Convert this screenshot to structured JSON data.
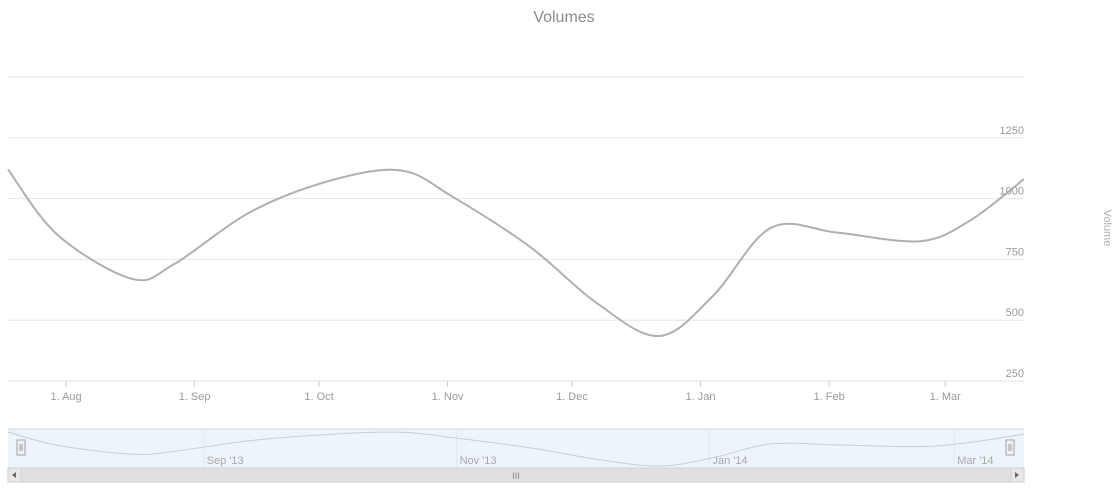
{
  "chart_data": {
    "type": "line",
    "title": "Volumes",
    "ylabel": "Volume",
    "xlabel": "",
    "ylim": [
      250,
      1500
    ],
    "xlim": [
      "2013-07-18",
      "2014-03-20"
    ],
    "y_ticks": [
      "250",
      "500",
      "750",
      "1000",
      "1250"
    ],
    "x_ticks": [
      {
        "date": "2013-08-01",
        "label": "1. Aug"
      },
      {
        "date": "2013-09-01",
        "label": "1. Sep"
      },
      {
        "date": "2013-10-01",
        "label": "1. Oct"
      },
      {
        "date": "2013-11-01",
        "label": "1. Nov"
      },
      {
        "date": "2013-12-01",
        "label": "1. Dec"
      },
      {
        "date": "2014-01-01",
        "label": "1. Jan"
      },
      {
        "date": "2014-02-01",
        "label": "1. Feb"
      },
      {
        "date": "2014-03-01",
        "label": "1. Mar"
      }
    ],
    "series": [
      {
        "color": "#b0b0b0",
        "points": [
          {
            "x": "2013-07-18",
            "y": 1120
          },
          {
            "x": "2013-07-30",
            "y": 850
          },
          {
            "x": "2013-08-17",
            "y": 670
          },
          {
            "x": "2013-08-27",
            "y": 730
          },
          {
            "x": "2013-09-15",
            "y": 950
          },
          {
            "x": "2013-10-05",
            "y": 1080
          },
          {
            "x": "2013-10-21",
            "y": 1115
          },
          {
            "x": "2013-11-02",
            "y": 1010
          },
          {
            "x": "2013-11-21",
            "y": 800
          },
          {
            "x": "2013-12-07",
            "y": 570
          },
          {
            "x": "2013-12-22",
            "y": 435
          },
          {
            "x": "2014-01-04",
            "y": 600
          },
          {
            "x": "2014-01-18",
            "y": 880
          },
          {
            "x": "2014-02-03",
            "y": 860
          },
          {
            "x": "2014-02-23",
            "y": 825
          },
          {
            "x": "2014-03-07",
            "y": 910
          },
          {
            "x": "2014-03-20",
            "y": 1080
          }
        ]
      }
    ],
    "grid": true,
    "navigator": {
      "labels": [
        {
          "date": "2013-09-01",
          "label": "Sep '13"
        },
        {
          "date": "2013-11-01",
          "label": "Nov '13"
        },
        {
          "date": "2014-01-01",
          "label": "Jan '14"
        },
        {
          "date": "2014-03-01",
          "label": "Mar '14"
        }
      ],
      "scrollbar_grip": "III"
    },
    "colors": {
      "navigator_fill": "#eef4fc",
      "grid": "#e6e6e6",
      "handle_fill": "#f2f2f2"
    }
  }
}
